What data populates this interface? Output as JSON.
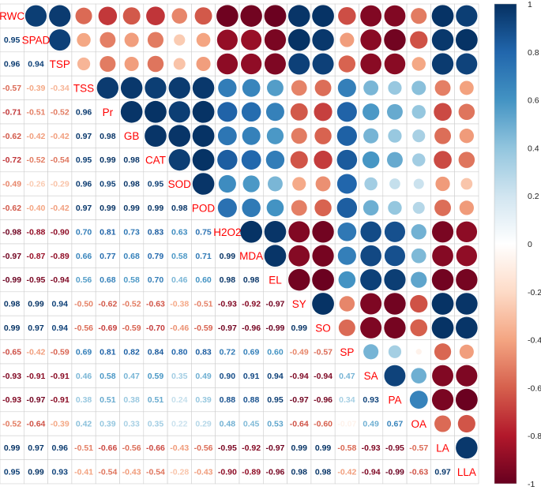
{
  "chart_data": {
    "type": "heatmap",
    "variables": [
      "RWC",
      "SPAD",
      "TSP",
      "TSS",
      "Pr",
      "GB",
      "CAT",
      "SOD",
      "POD",
      "H2O2",
      "MDA",
      "EL",
      "SY",
      "SO",
      "SP",
      "SA",
      "PA",
      "OA",
      "LA",
      "LLA"
    ],
    "lower_triangle": [
      [],
      [
        0.95
      ],
      [
        0.96,
        0.94
      ],
      [
        -0.57,
        -0.39,
        -0.34
      ],
      [
        -0.71,
        -0.51,
        -0.52,
        0.96
      ],
      [
        -0.62,
        -0.42,
        -0.42,
        0.97,
        0.98
      ],
      [
        -0.72,
        -0.52,
        -0.54,
        0.95,
        0.99,
        0.98
      ],
      [
        -0.49,
        -0.26,
        -0.29,
        0.96,
        0.95,
        0.98,
        0.95
      ],
      [
        -0.62,
        -0.4,
        -0.42,
        0.97,
        0.99,
        0.99,
        0.99,
        0.98
      ],
      [
        -0.98,
        -0.88,
        -0.9,
        0.7,
        0.81,
        0.73,
        0.83,
        0.63,
        0.75
      ],
      [
        -0.97,
        -0.87,
        -0.89,
        0.66,
        0.77,
        0.68,
        0.79,
        0.58,
        0.71,
        0.99
      ],
      [
        -0.99,
        -0.95,
        -0.94,
        0.56,
        0.68,
        0.58,
        0.7,
        0.46,
        0.6,
        0.98,
        0.98
      ],
      [
        0.98,
        0.99,
        0.94,
        -0.5,
        -0.62,
        -0.52,
        -0.63,
        -0.38,
        -0.51,
        -0.93,
        -0.92,
        -0.97
      ],
      [
        0.99,
        0.97,
        0.94,
        -0.56,
        -0.69,
        -0.59,
        -0.7,
        -0.46,
        -0.59,
        -0.97,
        -0.96,
        -0.99,
        0.99
      ],
      [
        -0.65,
        -0.42,
        -0.59,
        0.69,
        0.81,
        0.82,
        0.84,
        0.8,
        0.83,
        0.72,
        0.69,
        0.6,
        -0.49,
        -0.57
      ],
      [
        -0.93,
        -0.91,
        -0.91,
        0.46,
        0.58,
        0.47,
        0.59,
        0.35,
        0.49,
        0.9,
        0.91,
        0.94,
        -0.94,
        -0.94,
        0.47
      ],
      [
        -0.93,
        -0.97,
        -0.91,
        0.38,
        0.51,
        0.38,
        0.51,
        0.24,
        0.39,
        0.88,
        0.88,
        0.95,
        -0.97,
        -0.96,
        0.34,
        0.93
      ],
      [
        -0.52,
        -0.64,
        -0.39,
        0.42,
        0.39,
        0.33,
        0.35,
        0.22,
        0.29,
        0.48,
        0.45,
        0.53,
        -0.64,
        -0.6,
        -0.07,
        0.49,
        0.67
      ],
      [
        0.99,
        0.97,
        0.96,
        -0.51,
        -0.66,
        -0.56,
        -0.66,
        -0.43,
        -0.56,
        -0.95,
        -0.92,
        -0.97,
        0.99,
        0.99,
        -0.58,
        -0.93,
        -0.95,
        -0.57
      ],
      [
        0.95,
        0.99,
        0.93,
        -0.41,
        -0.54,
        -0.43,
        -0.54,
        -0.28,
        -0.43,
        -0.9,
        -0.89,
        -0.96,
        0.98,
        0.98,
        -0.42,
        -0.94,
        -0.99,
        -0.63,
        0.97
      ]
    ],
    "upper_display": "circle",
    "lower_display": "number",
    "diagonal_display": "label",
    "colorbar": {
      "range": [
        -1,
        1
      ],
      "ticks": [
        "1",
        "0.8",
        "0.6",
        "0.4",
        "0.2",
        "0",
        "-0.2",
        "-0.4",
        "-0.6",
        "-0.8",
        "-1"
      ],
      "colors": [
        "#67001F",
        "#B2182B",
        "#D6604D",
        "#F4A582",
        "#FDDBC7",
        "#FFFFFF",
        "#D1E5F0",
        "#92C5DE",
        "#4393C3",
        "#2166AC",
        "#053061"
      ]
    },
    "label_color": "#FF0000"
  }
}
